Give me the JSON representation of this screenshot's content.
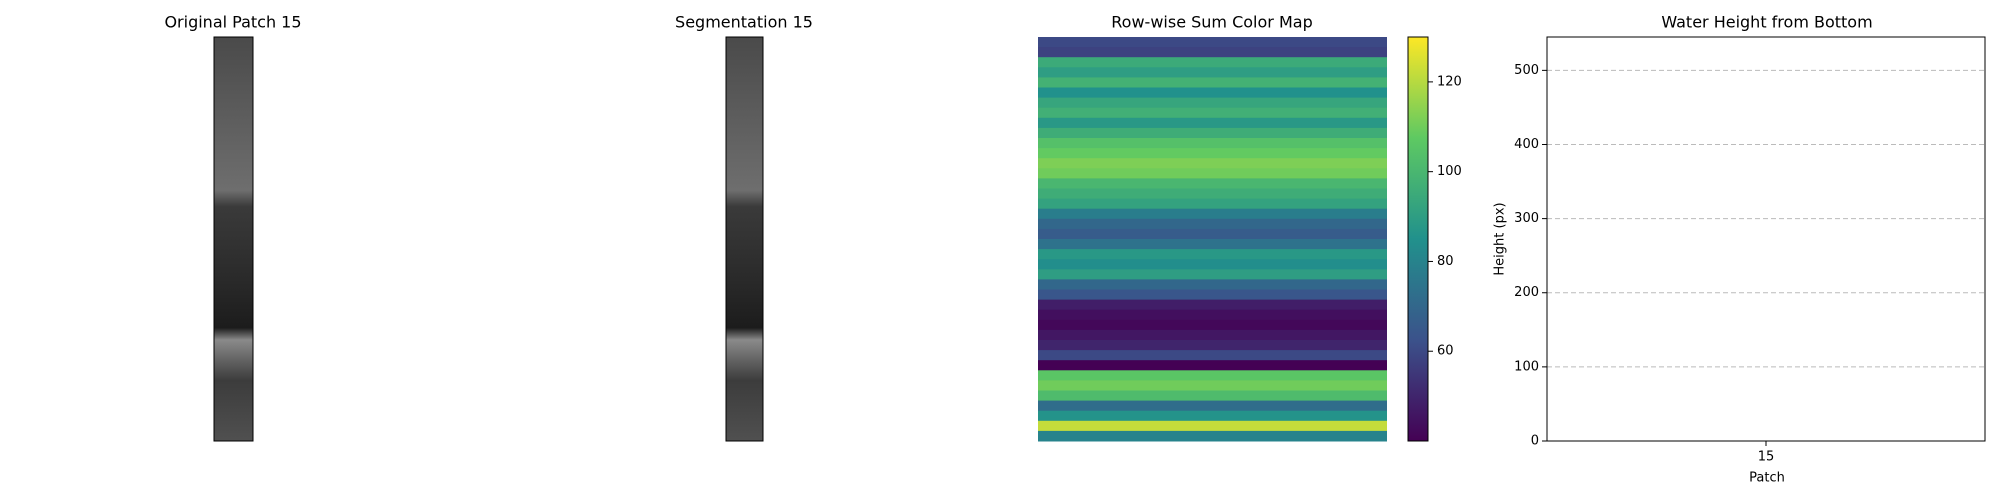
{
  "chart_data": [
    {
      "type": "image",
      "title": "Original Patch 15"
    },
    {
      "type": "image",
      "title": "Segmentation 15"
    },
    {
      "type": "heatmap",
      "title": "Row-wise Sum Color Map",
      "values": [
        60,
        58,
        95,
        90,
        98,
        85,
        93,
        97,
        88,
        96,
        104,
        108,
        112,
        110,
        100,
        96,
        92,
        78,
        70,
        66,
        74,
        88,
        84,
        90,
        70,
        64,
        48,
        44,
        42,
        46,
        50,
        60,
        40,
        106,
        110,
        102,
        72,
        86,
        122,
        80
      ],
      "clim": [
        40,
        130
      ],
      "cticks": [
        60,
        80,
        100,
        120
      ],
      "colormap": "viridis"
    },
    {
      "type": "bar",
      "title": "Water Height from Bottom",
      "categories": [
        "15"
      ],
      "values": [
        0
      ],
      "color": "#1f77b4",
      "ylim": [
        0,
        545
      ],
      "yticks": [
        0,
        100,
        200,
        300,
        400,
        500
      ],
      "xlabel": "Patch",
      "ylabel": "Height (px)",
      "grid": true
    }
  ]
}
